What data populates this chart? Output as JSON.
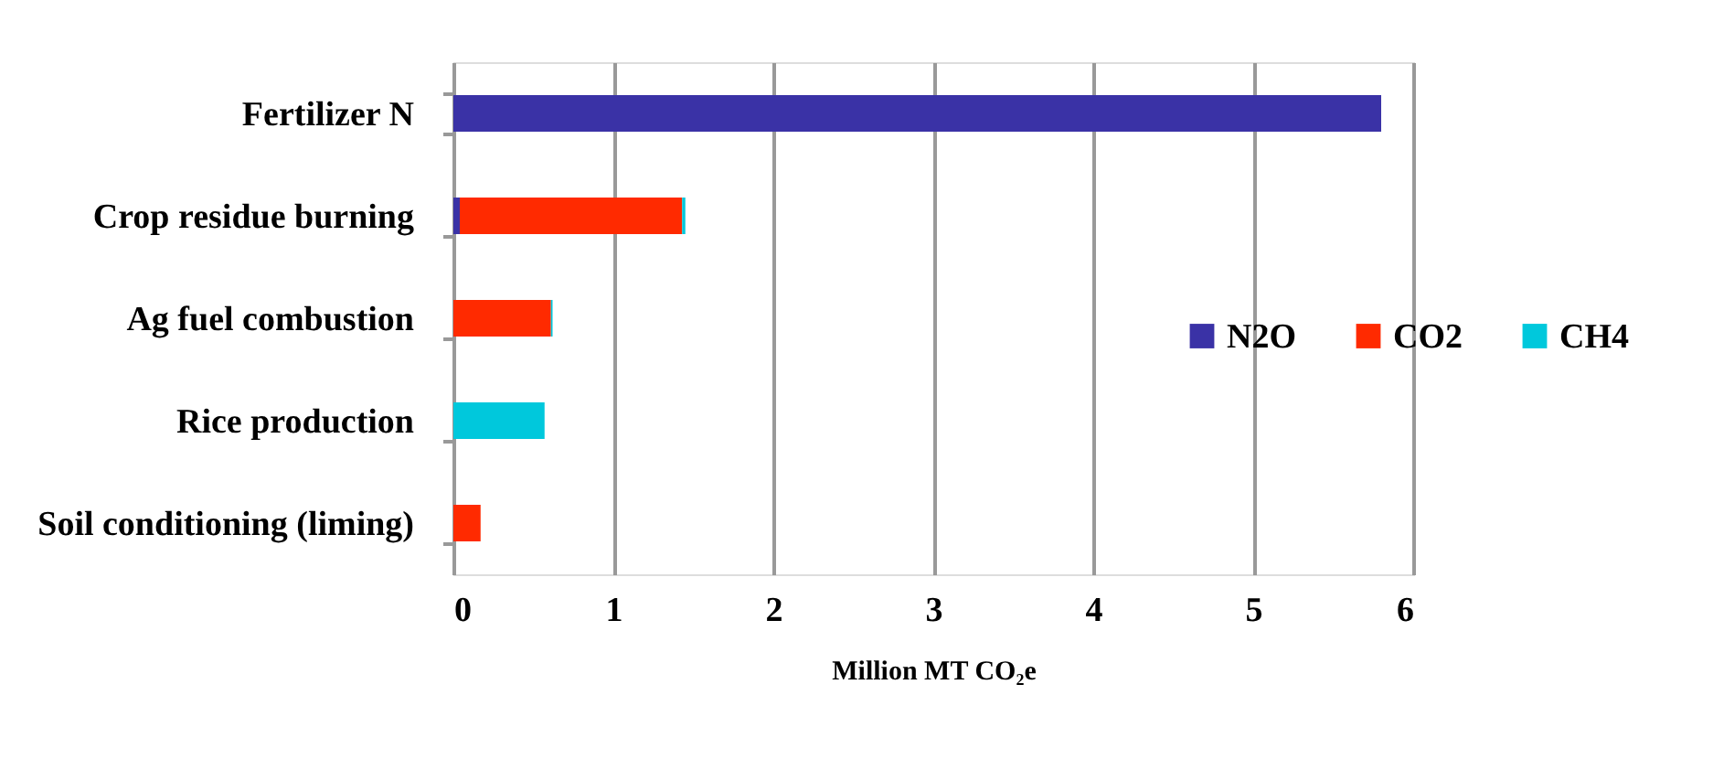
{
  "chart_data": {
    "type": "bar",
    "orientation": "horizontal",
    "stacked": true,
    "xlabel": "Million MT CO₂e",
    "categories": [
      "Fertilizer N",
      "Crop residue burning",
      "Ag fuel combustion",
      "Rice production",
      "Soil conditioning (liming)"
    ],
    "series": [
      {
        "name": "N2O",
        "color": "#3a32a6",
        "values": [
          5.8,
          0.04,
          0,
          0,
          0
        ]
      },
      {
        "name": "CO2",
        "color": "#ff2a00",
        "values": [
          0,
          1.39,
          0.61,
          0,
          0.17
        ]
      },
      {
        "name": "CH4",
        "color": "#00c8dc",
        "values": [
          0,
          0.02,
          0.01,
          0.57,
          0
        ]
      }
    ],
    "xlim": [
      0,
      6
    ],
    "xticks": [
      0,
      1,
      2,
      3,
      4,
      5,
      6
    ],
    "grid": "x",
    "legend": "right"
  }
}
